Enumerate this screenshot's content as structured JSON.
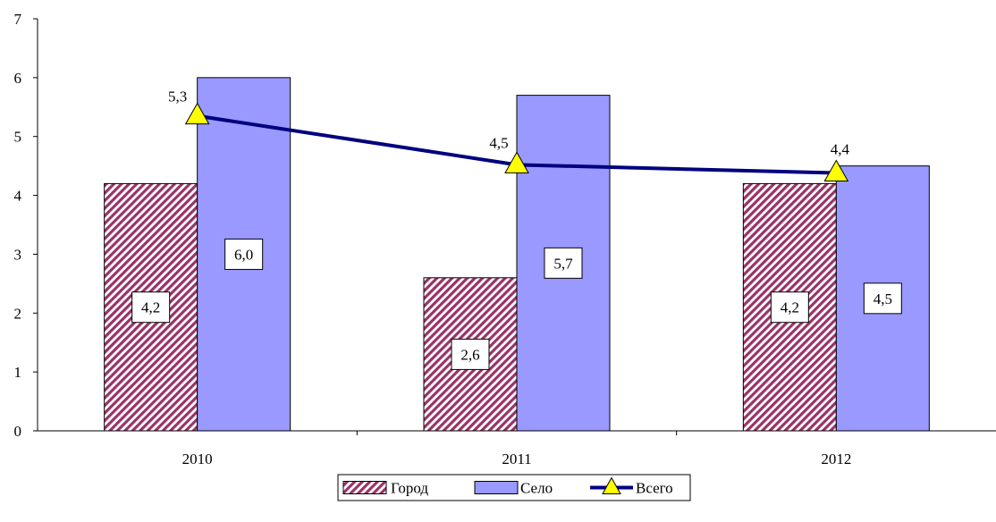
{
  "chart_data": {
    "type": "bar",
    "categories": [
      "2010",
      "2011",
      "2012"
    ],
    "series": [
      {
        "name": "Город",
        "kind": "bar",
        "pattern": "diagonal-hatch",
        "color": "#993366",
        "values": [
          4.2,
          2.6,
          4.2
        ],
        "labels": [
          "4,2",
          "2,6",
          "4,2"
        ]
      },
      {
        "name": "Село",
        "kind": "bar",
        "color": "#9999FF",
        "values": [
          6.0,
          5.7,
          4.5
        ],
        "labels": [
          "6,0",
          "5,7",
          "4,5"
        ]
      },
      {
        "name": "Всего",
        "kind": "line",
        "marker": "triangle",
        "color": "#000080",
        "marker_color": "#FFFF00",
        "values": [
          5.35,
          4.52,
          4.38
        ],
        "labels": [
          "5,3",
          "4,5",
          "4,4"
        ]
      }
    ],
    "ylim": [
      0,
      7
    ],
    "yticks": [
      "0",
      "1",
      "2",
      "3",
      "4",
      "5",
      "6",
      "7"
    ],
    "grid": false,
    "legend_position": "bottom"
  }
}
